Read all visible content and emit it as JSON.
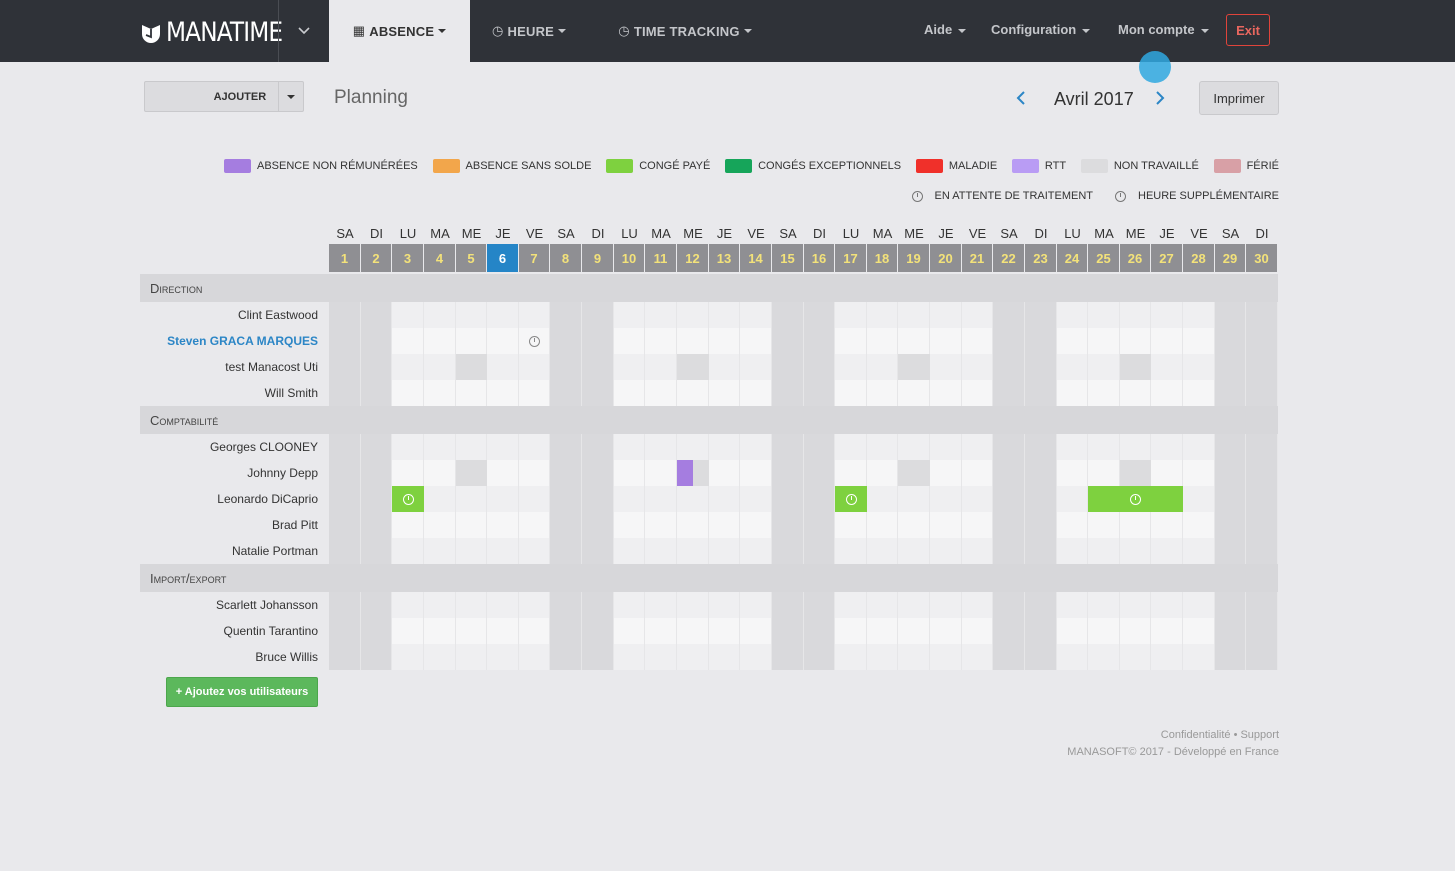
{
  "brand": {
    "name": "MANATIME"
  },
  "nav": {
    "tabs": [
      {
        "label": "ABSENCE",
        "icon": "calendar-icon",
        "active": true
      },
      {
        "label": "HEURE",
        "icon": "clock-icon",
        "active": false
      },
      {
        "label": "TIME TRACKING",
        "icon": "stopwatch-icon",
        "active": false
      }
    ],
    "right": {
      "aide": "Aide",
      "configuration": "Configuration",
      "account": "Mon compte",
      "exit": "Exit"
    }
  },
  "toolbar": {
    "add_label": "AJOUTER",
    "page_title": "Planning",
    "month": "Avril 2017",
    "print_label": "Imprimer"
  },
  "legend": [
    {
      "label": "ABSENCE NON RÉMUNÉRÉES",
      "color": "#a57de0"
    },
    {
      "label": "ABSENCE SANS SOLDE",
      "color": "#f2a64b"
    },
    {
      "label": "CONGÉ PAYÉ",
      "color": "#7ed13f"
    },
    {
      "label": "CONGÉS EXCEPTIONNELS",
      "color": "#16a55a"
    },
    {
      "label": "MALADIE",
      "color": "#f0302a"
    },
    {
      "label": "RTT",
      "color": "#b99cf4"
    },
    {
      "label": "NON TRAVAILLÉ",
      "color": "#dcdcde"
    },
    {
      "label": "FÉRIÉ",
      "color": "#d8a0a6"
    }
  ],
  "legend_status": {
    "pending": "EN ATTENTE DE TRAITEMENT",
    "overtime": "HEURE SUPPLÉMENTAIRE"
  },
  "calendar": {
    "days": [
      {
        "dow": "SA",
        "num": "1"
      },
      {
        "dow": "DI",
        "num": "2"
      },
      {
        "dow": "LU",
        "num": "3"
      },
      {
        "dow": "MA",
        "num": "4"
      },
      {
        "dow": "ME",
        "num": "5"
      },
      {
        "dow": "JE",
        "num": "6"
      },
      {
        "dow": "VE",
        "num": "7"
      },
      {
        "dow": "SA",
        "num": "8"
      },
      {
        "dow": "DI",
        "num": "9"
      },
      {
        "dow": "LU",
        "num": "10"
      },
      {
        "dow": "MA",
        "num": "11"
      },
      {
        "dow": "ME",
        "num": "12"
      },
      {
        "dow": "JE",
        "num": "13"
      },
      {
        "dow": "VE",
        "num": "14"
      },
      {
        "dow": "SA",
        "num": "15"
      },
      {
        "dow": "DI",
        "num": "16"
      },
      {
        "dow": "LU",
        "num": "17"
      },
      {
        "dow": "MA",
        "num": "18"
      },
      {
        "dow": "ME",
        "num": "19"
      },
      {
        "dow": "JE",
        "num": "20"
      },
      {
        "dow": "VE",
        "num": "21"
      },
      {
        "dow": "SA",
        "num": "22"
      },
      {
        "dow": "DI",
        "num": "23"
      },
      {
        "dow": "LU",
        "num": "24"
      },
      {
        "dow": "MA",
        "num": "25"
      },
      {
        "dow": "ME",
        "num": "26"
      },
      {
        "dow": "JE",
        "num": "27"
      },
      {
        "dow": "VE",
        "num": "28"
      },
      {
        "dow": "SA",
        "num": "29"
      },
      {
        "dow": "DI",
        "num": "30"
      }
    ],
    "today": "6",
    "groups": [
      {
        "name": "Direction",
        "users": [
          {
            "name": "Clint Eastwood",
            "events": []
          },
          {
            "name": "Steven GRACA MARQUES",
            "highlight": true,
            "events": [
              {
                "type": "overtime",
                "from": "7",
                "to": "7"
              }
            ]
          },
          {
            "name": "test Manacost Uti",
            "events": [
              {
                "type": "non_travaille",
                "from": "5",
                "to": "5"
              },
              {
                "type": "non_travaille",
                "from": "12",
                "to": "12"
              },
              {
                "type": "non_travaille",
                "from": "19",
                "to": "19"
              },
              {
                "type": "non_travaille",
                "from": "26",
                "to": "26"
              }
            ]
          },
          {
            "name": "Will Smith",
            "events": []
          }
        ]
      },
      {
        "name": "Comptabilité",
        "users": [
          {
            "name": "Georges CLOONEY",
            "events": []
          },
          {
            "name": "Johnny Depp",
            "events": [
              {
                "type": "non_travaille",
                "from": "5",
                "to": "5"
              },
              {
                "type": "absence_non_remuneree",
                "from": "12",
                "to": "12",
                "half": "am"
              },
              {
                "type": "non_travaille",
                "from": "12",
                "to": "12",
                "half": "pm"
              },
              {
                "type": "non_travaille",
                "from": "19",
                "to": "19"
              },
              {
                "type": "non_travaille",
                "from": "26",
                "to": "26"
              }
            ]
          },
          {
            "name": "Leonardo DiCaprio",
            "events": [
              {
                "type": "conge_paye_pending",
                "from": "3",
                "to": "3"
              },
              {
                "type": "conge_paye_pending",
                "from": "17",
                "to": "17"
              },
              {
                "type": "conge_paye_pending",
                "from": "25",
                "to": "27"
              }
            ]
          },
          {
            "name": "Brad Pitt",
            "events": []
          },
          {
            "name": "Natalie Portman",
            "events": []
          }
        ]
      },
      {
        "name": "Import/export",
        "users": [
          {
            "name": "Scarlett Johansson",
            "events": []
          },
          {
            "name": "Quentin Tarantino",
            "events": []
          },
          {
            "name": "Bruce Willis",
            "events": []
          }
        ]
      }
    ]
  },
  "add_users_label": "+ Ajoutez vos utilisateurs",
  "footer": {
    "links": "Confidentialité • Support",
    "copyright": "MANASOFT© 2017 - Développé en France"
  }
}
